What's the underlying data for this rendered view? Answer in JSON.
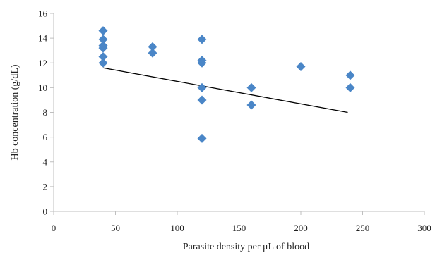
{
  "chart_data": {
    "type": "scatter",
    "xlabel": "Parasite density per μL of  blood",
    "ylabel": "Hb concentration (g/dL)",
    "xlim": [
      0,
      300
    ],
    "ylim": [
      0,
      16
    ],
    "x_ticks": [
      "0",
      "50",
      "100",
      "150",
      "200",
      "250",
      "300"
    ],
    "y_ticks": [
      "0",
      "2",
      "4",
      "6",
      "8",
      "10",
      "12",
      "14",
      "16"
    ],
    "grid": false,
    "marker": "diamond",
    "marker_color": "#4a86c7",
    "line_color": "#000000",
    "points": [
      {
        "x": 40,
        "y": 14.6
      },
      {
        "x": 40,
        "y": 13.9
      },
      {
        "x": 40,
        "y": 13.4
      },
      {
        "x": 40,
        "y": 13.2
      },
      {
        "x": 40,
        "y": 12.5
      },
      {
        "x": 40,
        "y": 12.0
      },
      {
        "x": 80,
        "y": 13.3
      },
      {
        "x": 80,
        "y": 12.8
      },
      {
        "x": 120,
        "y": 13.9
      },
      {
        "x": 120,
        "y": 12.2
      },
      {
        "x": 120,
        "y": 12.0
      },
      {
        "x": 120,
        "y": 10.0
      },
      {
        "x": 120,
        "y": 9.0
      },
      {
        "x": 120,
        "y": 5.9
      },
      {
        "x": 160,
        "y": 10.0
      },
      {
        "x": 160,
        "y": 8.6
      },
      {
        "x": 200,
        "y": 11.7
      },
      {
        "x": 240,
        "y": 11.0
      },
      {
        "x": 240,
        "y": 10.0
      }
    ],
    "trendline": [
      {
        "x": 40,
        "y": 11.6
      },
      {
        "x": 238,
        "y": 8.0
      }
    ]
  }
}
